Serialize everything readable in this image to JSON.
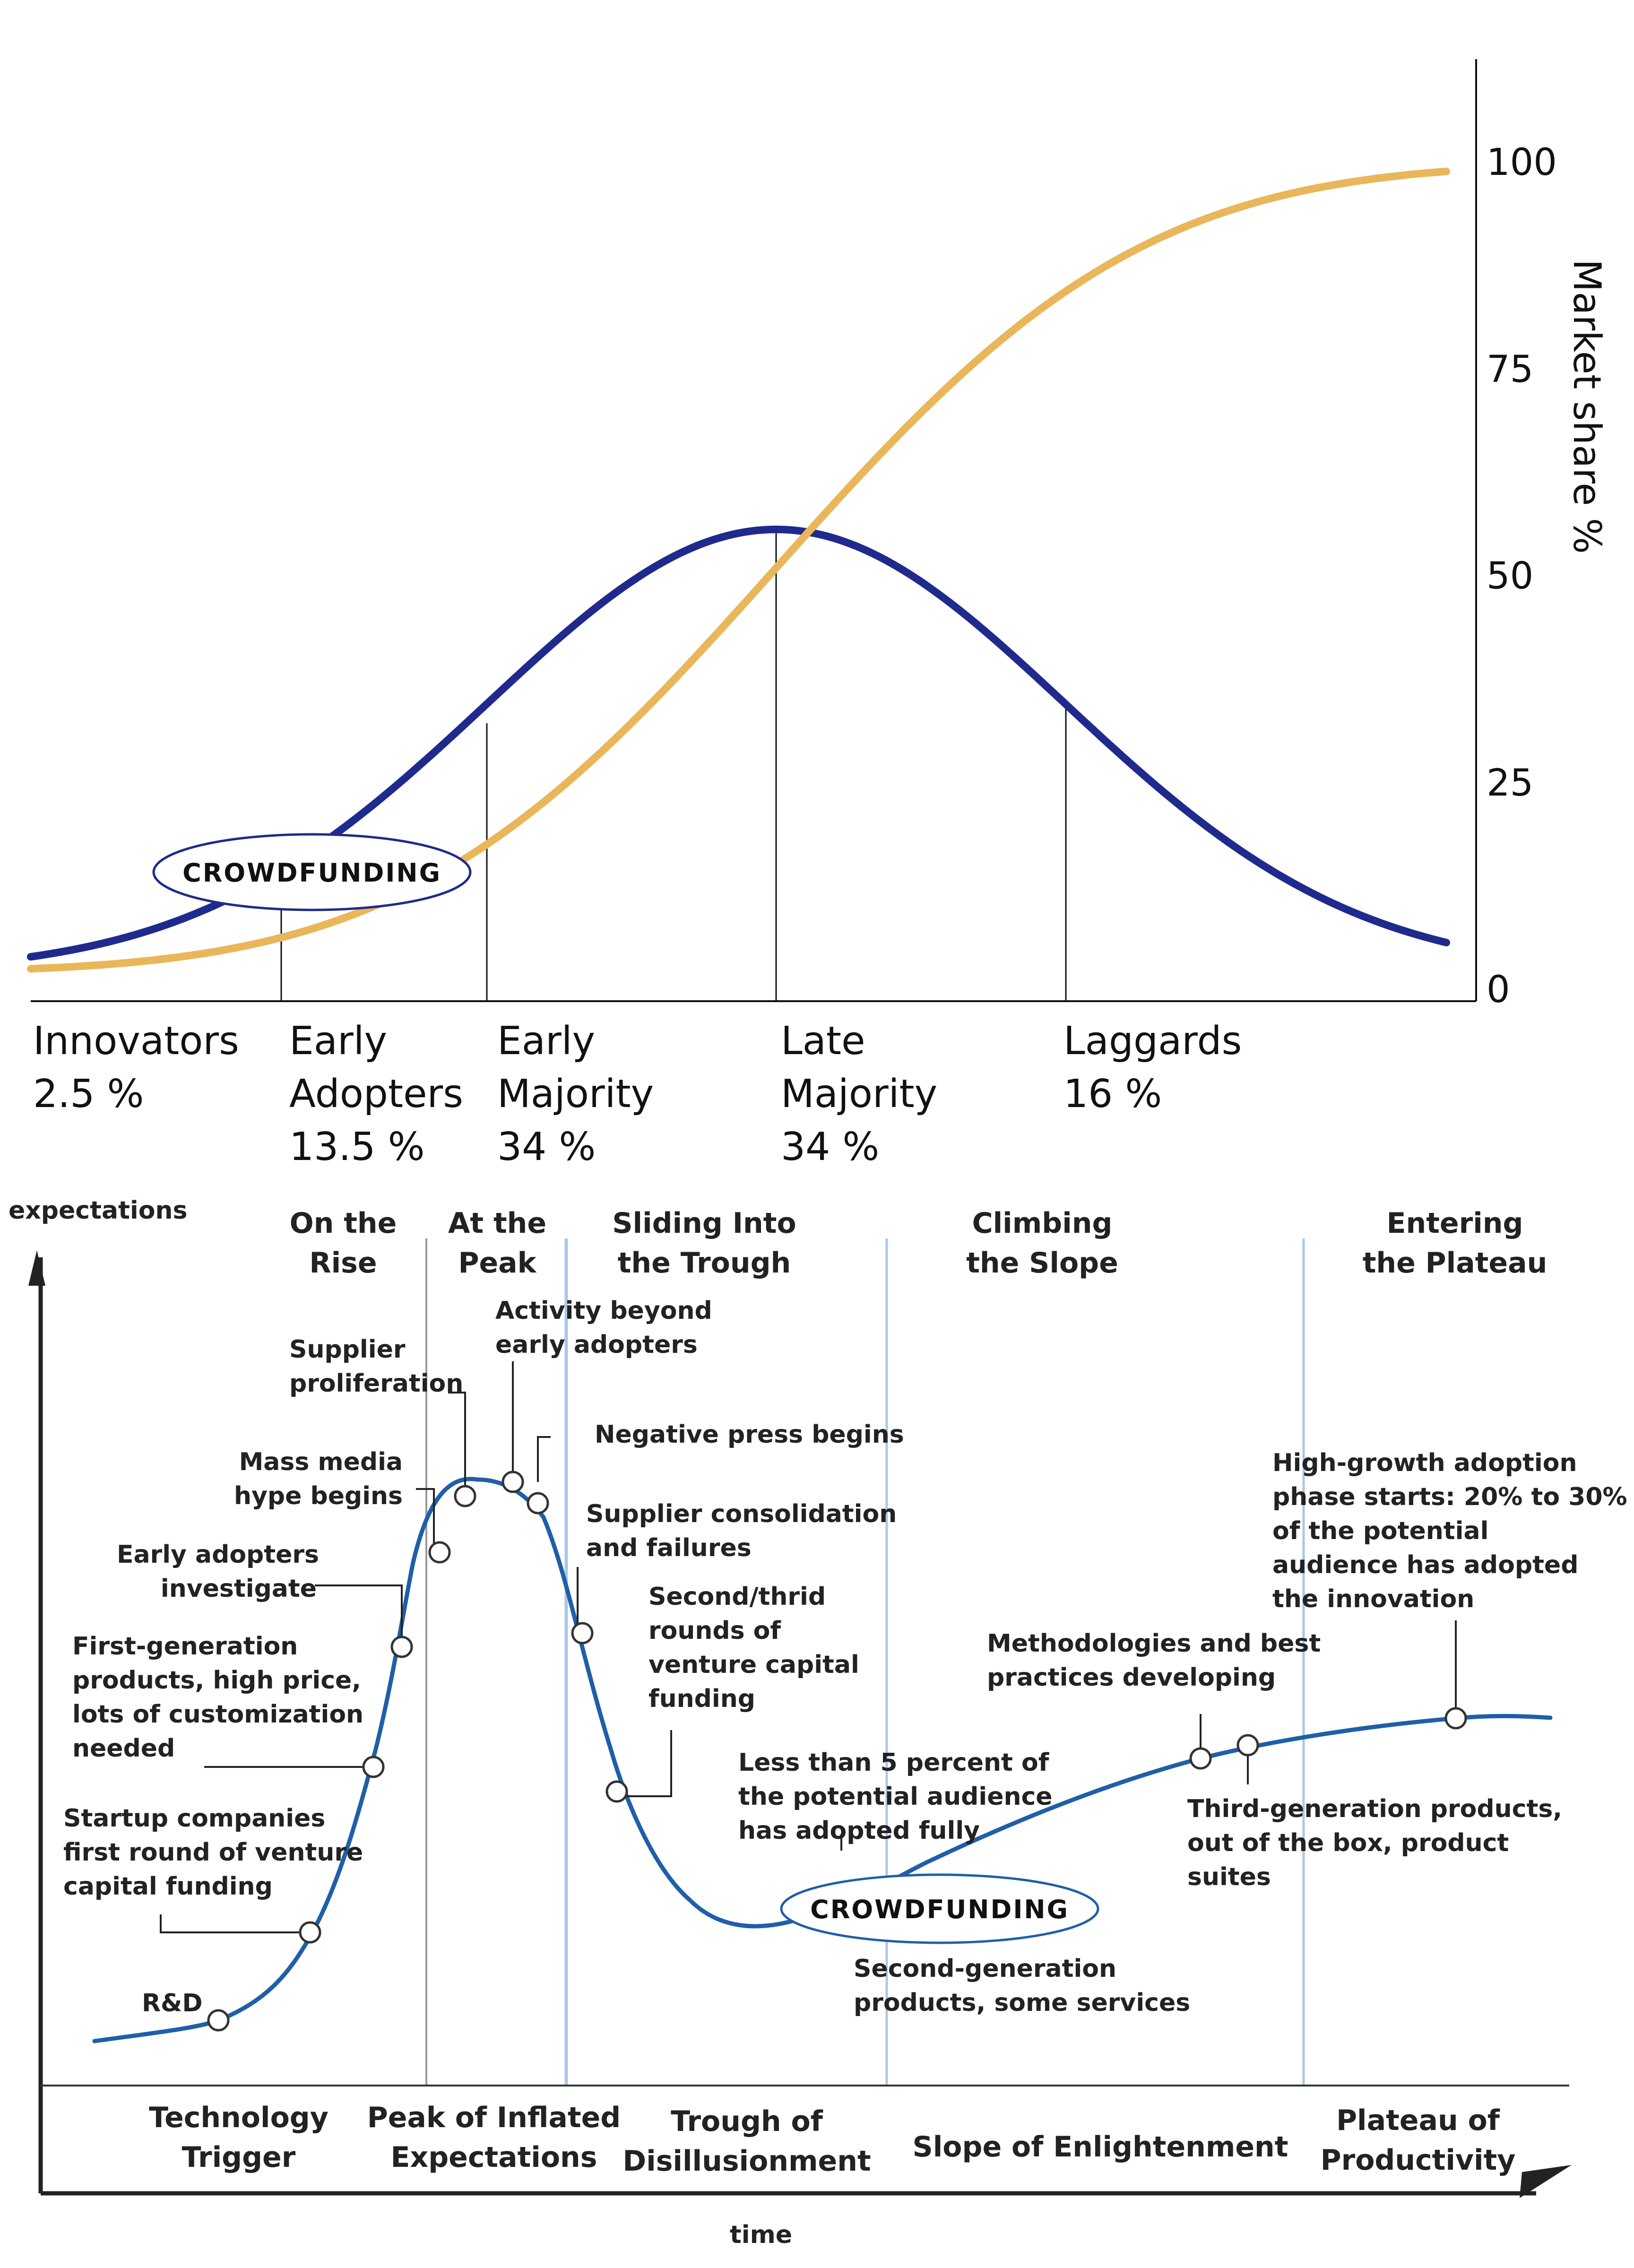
{
  "adoption": {
    "axis_title": "Market share %",
    "ticks": [
      "100",
      "75",
      "50",
      "25",
      "0"
    ],
    "segments": [
      {
        "name": "Innovators",
        "share": "2.5 %"
      },
      {
        "name": "Early Adopters",
        "share": "13.5 %"
      },
      {
        "name": "Early Majority",
        "share": "34 %"
      },
      {
        "name": "Late Majority",
        "share": "34 %"
      },
      {
        "name": "Laggards",
        "share": "16 %"
      }
    ],
    "badge": "CROWDFUNDING",
    "colors": {
      "bell": "#1f2a8c",
      "cumulative": "#e9b65a"
    }
  },
  "hype": {
    "y_axis_label": "expectations",
    "x_axis_label": "time",
    "phase_titles": [
      "On the Rise",
      "At the Peak",
      "Sliding Into the Trough",
      "Climbing the Slope",
      "Entering the Plateau"
    ],
    "phase_names": [
      "Technology Trigger",
      "Peak of Inflated Expectations",
      "Trough of Disillusionment",
      "Slope of Enlightenment",
      "Plateau of Productivity"
    ],
    "annotations": {
      "rd": "R&D",
      "startup": "Startup companies first round of venture capital funding",
      "first_gen": "First-generation products, high price, lots of customization needed",
      "early_adopters": "Early adopters investigate",
      "mass_media": "Mass media hype begins",
      "supplier_prolif": "Supplier proliferation",
      "activity_beyond": "Activity beyond early adopters",
      "negative_press": "Negative press begins",
      "consolidation": "Supplier consolidation and failures",
      "second_third": "Second/thrid rounds of venture capital funding",
      "less_than_5": "Less than 5 percent of the potential audience has adopted fully",
      "second_gen": "Second-generation products, some services",
      "methodologies": "Methodologies and best practices developing",
      "third_gen": "Third-generation products, out of the box, product suites",
      "high_growth": "High-growth adoption phase starts: 20% to 30% of the potential audience has adopted the innovation"
    },
    "badge": "CROWDFUNDING",
    "colors": {
      "curve": "#1f5fa8"
    }
  }
}
